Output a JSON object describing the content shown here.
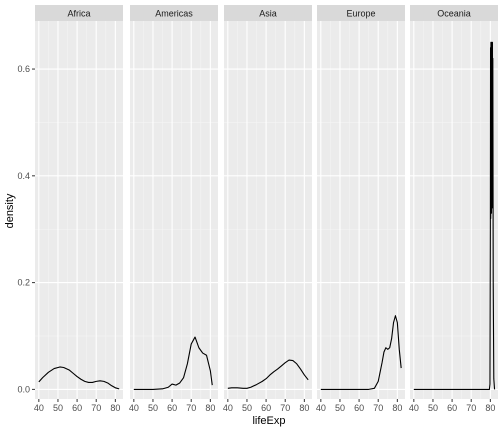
{
  "chart_data": {
    "type": "line",
    "xlabel": "lifeExp",
    "ylabel": "density",
    "xlim": [
      38,
      84
    ],
    "ylim": [
      -0.018,
      0.69
    ],
    "x_ticks": [
      40,
      50,
      60,
      70,
      80
    ],
    "y_ticks": [
      0.0,
      0.2,
      0.4,
      0.6
    ],
    "x_tick_labels": [
      "40",
      "50",
      "60",
      "70",
      "80"
    ],
    "y_tick_labels": [
      "0.0",
      "0.2",
      "0.4",
      "0.6"
    ],
    "grid": true,
    "legend": "none",
    "facets": [
      "Africa",
      "Americas",
      "Asia",
      "Europe",
      "Oceania"
    ],
    "series": [
      {
        "facet": "Africa",
        "x": [
          40,
          42,
          45,
          48,
          51,
          53,
          56,
          58,
          60,
          62,
          64,
          66,
          68,
          70,
          72,
          74,
          76,
          78,
          80,
          82
        ],
        "y": [
          0.014,
          0.022,
          0.032,
          0.039,
          0.042,
          0.041,
          0.036,
          0.03,
          0.024,
          0.019,
          0.015,
          0.013,
          0.013,
          0.015,
          0.016,
          0.015,
          0.012,
          0.007,
          0.003,
          0.001
        ]
      },
      {
        "facet": "Americas",
        "x": [
          40,
          45,
          50,
          55,
          58,
          60,
          62,
          64,
          66,
          68,
          70,
          72,
          74,
          76,
          78,
          80,
          81
        ],
        "y": [
          0.0,
          0.0,
          0.0,
          0.001,
          0.004,
          0.01,
          0.008,
          0.012,
          0.022,
          0.048,
          0.085,
          0.098,
          0.078,
          0.068,
          0.064,
          0.035,
          0.008
        ]
      },
      {
        "facet": "Asia",
        "x": [
          40,
          42,
          45,
          48,
          50,
          52,
          55,
          58,
          60,
          62,
          64,
          66,
          68,
          70,
          72,
          74,
          76,
          78,
          80,
          82
        ],
        "y": [
          0.002,
          0.003,
          0.003,
          0.002,
          0.002,
          0.004,
          0.009,
          0.015,
          0.02,
          0.027,
          0.033,
          0.038,
          0.044,
          0.05,
          0.055,
          0.054,
          0.048,
          0.038,
          0.027,
          0.018
        ]
      },
      {
        "facet": "Europe",
        "x": [
          40,
          50,
          60,
          65,
          68,
          70,
          72,
          73,
          74,
          75,
          76,
          77,
          78,
          79,
          80,
          81,
          82
        ],
        "y": [
          0.0,
          0.0,
          0.0,
          0.0,
          0.002,
          0.015,
          0.05,
          0.07,
          0.078,
          0.075,
          0.078,
          0.095,
          0.125,
          0.138,
          0.125,
          0.075,
          0.04
        ]
      },
      {
        "facet": "Oceania",
        "x": [
          40,
          50,
          60,
          70,
          76,
          79.5,
          79.8,
          80.0,
          80.1,
          80.2,
          80.3,
          80.4,
          80.5,
          80.6,
          80.7,
          80.8,
          80.9,
          81.0,
          81.1,
          81.2,
          81.3,
          81.5,
          81.8,
          82.2
        ],
        "y": [
          0.0,
          0.0,
          0.0,
          0.0,
          0.0,
          0.0,
          0.01,
          0.3,
          0.64,
          0.32,
          0.65,
          0.35,
          0.64,
          0.33,
          0.65,
          0.36,
          0.64,
          0.34,
          0.65,
          0.4,
          0.62,
          0.2,
          0.02,
          0.0
        ]
      }
    ]
  }
}
